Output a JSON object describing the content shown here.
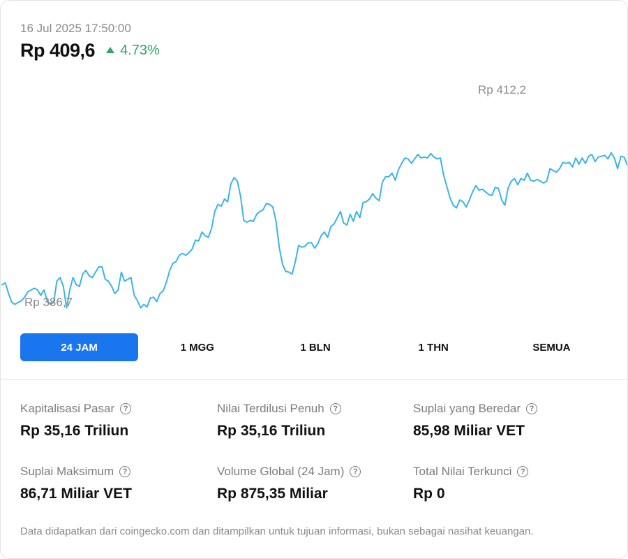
{
  "header": {
    "timestamp": "16 Jul 2025 17:50:00",
    "price": "Rp 409,6",
    "change": "4.73%",
    "change_color": "#2ea56b"
  },
  "chart_data": {
    "type": "line",
    "line_color": "#3ab4ea",
    "high_label": "Rp 412,2",
    "low_label": "Rp 386,7",
    "high": 412.2,
    "low": 386.7,
    "ylim": [
      385.2,
      413.4
    ],
    "series": [
      {
        "values": [
          389.4,
          389.6,
          388.4,
          387.4,
          387.2,
          387.4,
          387.6,
          388.0,
          388.6,
          388.8,
          389.0,
          388.8,
          388.2,
          388.8,
          387.6,
          387.2,
          387.4,
          389.8,
          390.2,
          389.2,
          386.8,
          388.8,
          390.2,
          389.4,
          389.2,
          390.6,
          391.0,
          390.4,
          390.2,
          390.8,
          391.4,
          391.4,
          390.0,
          389.8,
          389.2,
          388.4,
          388.8,
          390.8,
          389.8,
          390.0,
          390.2,
          388.2,
          387.6,
          386.8,
          387.2,
          386.9,
          387.9,
          388.0,
          387.5,
          388.4,
          388.7,
          389.7,
          391.0,
          391.8,
          392.0,
          392.7,
          392.9,
          392.7,
          393.0,
          393.4,
          394.4,
          394.3,
          395.3,
          394.9,
          394.7,
          395.7,
          397.6,
          398.4,
          398.2,
          399.0,
          398.7,
          400.7,
          401.4,
          401.0,
          399.3,
          396.6,
          396.4,
          396.6,
          396.5,
          397.3,
          397.6,
          397.8,
          398.5,
          398.4,
          398.1,
          396.5,
          393.6,
          391.7,
          390.9,
          390.8,
          390.6,
          392.0,
          393.8,
          393.6,
          393.7,
          394.1,
          394.1,
          393.5,
          394.0,
          394.9,
          395.3,
          394.7,
          395.9,
          396.2,
          396.9,
          397.6,
          396.3,
          396.1,
          397.3,
          396.5,
          397.6,
          396.9,
          398.6,
          398.7,
          399.0,
          399.6,
          399.1,
          398.8,
          400.9,
          401.5,
          401.5,
          401.9,
          401.1,
          402.3,
          403.0,
          403.6,
          403.5,
          403.0,
          403.5,
          404.0,
          403.6,
          403.7,
          403.6,
          404.1,
          403.7,
          403.5,
          403.6,
          401.7,
          400.4,
          399.1,
          398.3,
          398.0,
          398.9,
          398.7,
          398.1,
          398.9,
          399.8,
          400.5,
          400.0,
          400.1,
          399.8,
          399.5,
          399.4,
          400.3,
          400.2,
          398.9,
          398.3,
          400.2,
          401.0,
          401.3,
          400.6,
          401.3,
          401.1,
          401.9,
          401.1,
          401.0,
          401.2,
          401.0,
          400.8,
          401.0,
          402.4,
          402.2,
          402.0,
          402.4,
          403.1,
          403.0,
          403.1,
          402.6,
          403.6,
          402.9,
          403.6,
          403.0,
          403.8,
          404.0,
          403.2,
          403.7,
          403.8,
          403.9,
          403.5,
          404.2,
          403.6,
          402.4,
          403.8,
          403.7,
          402.8
        ]
      }
    ]
  },
  "tabs": [
    {
      "label": "24 JAM",
      "active": true
    },
    {
      "label": "1 MGG",
      "active": false
    },
    {
      "label": "1 BLN",
      "active": false
    },
    {
      "label": "1 THN",
      "active": false
    },
    {
      "label": "SEMUA",
      "active": false
    }
  ],
  "stats": [
    {
      "label": "Kapitalisasi Pasar",
      "value": "Rp 35,16 Triliun"
    },
    {
      "label": "Nilai Terdilusi Penuh",
      "value": "Rp 35,16 Triliun"
    },
    {
      "label": "Suplai yang Beredar",
      "value": "85,98 Miliar VET"
    },
    {
      "label": "Suplai Maksimum",
      "value": "86,71 Miliar VET"
    },
    {
      "label": "Volume Global (24 Jam)",
      "value": "Rp 875,35 Miliar"
    },
    {
      "label": "Total Nilai Terkunci",
      "value": "Rp 0"
    }
  ],
  "help_icon": "?",
  "footer": "Data didapatkan dari coingecko.com dan ditampilkan untuk tujuan informasi, bukan sebagai nasihat keuangan."
}
